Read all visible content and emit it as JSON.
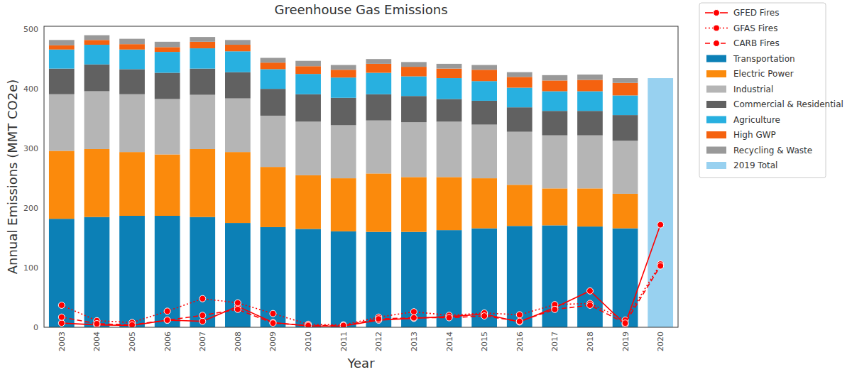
{
  "chart_data": {
    "type": "bar",
    "title": "Greenhouse Gas Emissions",
    "x_label": "Year",
    "y_label": "Annual Emissions (MMT CO2e)",
    "stacked": true,
    "grid": false,
    "legend": "right",
    "categories": [
      "2003",
      "2004",
      "2005",
      "2006",
      "2007",
      "2008",
      "2009",
      "2010",
      "2011",
      "2012",
      "2013",
      "2014",
      "2015",
      "2016",
      "2017",
      "2018",
      "2019",
      "2020"
    ],
    "ylim": [
      0,
      505
    ],
    "yticks": [
      0,
      100,
      200,
      300,
      400,
      500
    ],
    "series": [
      {
        "name": "GFED Fires",
        "type": "line",
        "line_style": "solid",
        "marker": "circle",
        "color": "#ff0000",
        "values": [
          7,
          4,
          3,
          12,
          10,
          35,
          8,
          2,
          2,
          12,
          15,
          18,
          22,
          9,
          33,
          61,
          5,
          172
        ]
      },
      {
        "name": "GFAS Fires",
        "type": "line",
        "line_style": "dotted",
        "marker": "circle",
        "color": "#ff0000",
        "values": [
          37,
          11,
          8,
          27,
          48,
          41,
          23,
          5,
          4,
          17,
          26,
          20,
          24,
          21,
          38,
          40,
          12,
          106
        ]
      },
      {
        "name": "CARB Fires",
        "type": "line",
        "line_style": "dashed",
        "marker": "circle",
        "color": "#ff0000",
        "values": [
          17,
          6,
          4,
          12,
          20,
          30,
          7,
          3,
          3,
          14,
          16,
          16,
          19,
          10,
          30,
          37,
          7,
          103
        ]
      },
      {
        "name": "Transportation",
        "type": "bar",
        "color": "#0c80b6",
        "values": [
          182,
          185,
          187,
          187,
          185,
          175,
          168,
          165,
          161,
          160,
          160,
          163,
          166,
          170,
          171,
          169,
          166,
          null
        ]
      },
      {
        "name": "Electric Power",
        "type": "bar",
        "color": "#fb8a0c",
        "values": [
          114,
          114,
          107,
          103,
          114,
          119,
          101,
          90,
          89,
          98,
          92,
          89,
          84,
          69,
          62,
          64,
          58,
          null
        ]
      },
      {
        "name": "Industrial",
        "type": "bar",
        "color": "#b5b5b5",
        "values": [
          95,
          97,
          97,
          93,
          91,
          90,
          86,
          90,
          89,
          89,
          92,
          93,
          90,
          89,
          89,
          89,
          89,
          null
        ]
      },
      {
        "name": "Commercial & Residential",
        "type": "bar",
        "color": "#616161",
        "values": [
          43,
          45,
          42,
          44,
          44,
          44,
          45,
          46,
          46,
          44,
          44,
          38,
          40,
          41,
          41,
          41,
          43,
          null
        ]
      },
      {
        "name": "Agriculture",
        "type": "bar",
        "color": "#28b0e0",
        "values": [
          32,
          33,
          33,
          35,
          34,
          35,
          33,
          34,
          34,
          36,
          33,
          35,
          33,
          33,
          33,
          33,
          33,
          null
        ]
      },
      {
        "name": "High GWP",
        "type": "bar",
        "color": "#f5620f",
        "values": [
          7,
          8,
          9,
          8,
          11,
          11,
          11,
          13,
          13,
          15,
          16,
          16,
          19,
          18,
          18,
          19,
          21,
          null
        ]
      },
      {
        "name": "Recycling & Waste",
        "type": "bar",
        "color": "#999999",
        "values": [
          9,
          8,
          9,
          9,
          8,
          8,
          8,
          9,
          8,
          8,
          8,
          8,
          8,
          8,
          9,
          9,
          8,
          null
        ]
      },
      {
        "name": "2019 Total",
        "type": "bar",
        "color": "#98d1f0",
        "values": [
          null,
          null,
          null,
          null,
          null,
          null,
          null,
          null,
          null,
          null,
          null,
          null,
          null,
          null,
          null,
          null,
          null,
          418
        ]
      }
    ]
  }
}
